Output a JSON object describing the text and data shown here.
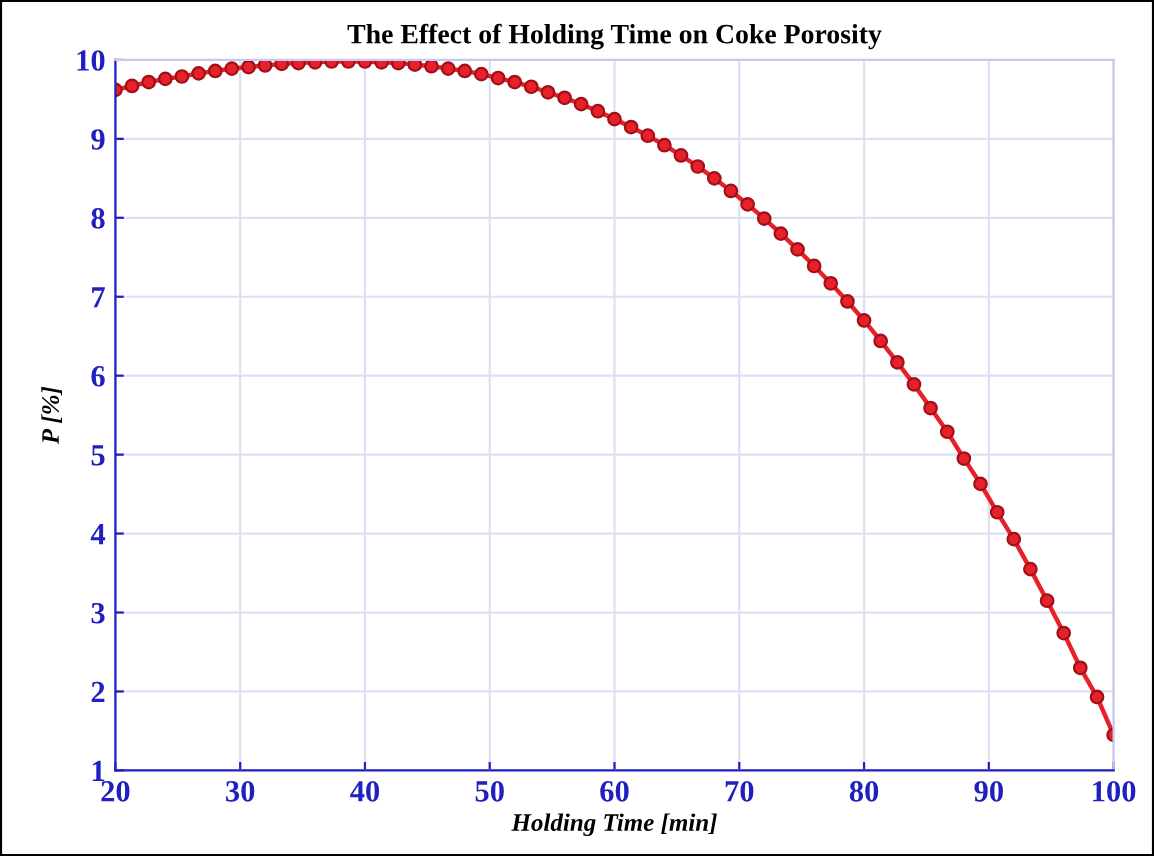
{
  "chart_data": {
    "type": "line",
    "title": "The Effect of Holding Time on Coke Porosity",
    "xlabel": "Holding Time [min]",
    "ylabel": "P [%]",
    "x": [
      20,
      21.33,
      22.67,
      24,
      25.33,
      26.67,
      28,
      29.33,
      30.67,
      32,
      33.33,
      34.67,
      36,
      37.33,
      38.67,
      40,
      41.33,
      42.67,
      44,
      45.33,
      46.67,
      48,
      49.33,
      50.67,
      52,
      53.33,
      54.67,
      56,
      57.33,
      58.67,
      60,
      61.33,
      62.67,
      64,
      65.33,
      66.67,
      68,
      69.33,
      70.67,
      72,
      73.33,
      74.67,
      76,
      77.33,
      78.67,
      80,
      81.33,
      82.67,
      84,
      85.33,
      86.67,
      88,
      89.33,
      90.67,
      92,
      93.33,
      94.67,
      96,
      97.33,
      98.67,
      100
    ],
    "series": [
      {
        "color": "#e8202a",
        "values": [
          9.62,
          9.67,
          9.72,
          9.76,
          9.79,
          9.83,
          9.86,
          9.89,
          9.91,
          9.93,
          9.95,
          9.96,
          9.97,
          9.98,
          9.98,
          9.98,
          9.97,
          9.96,
          9.94,
          9.92,
          9.89,
          9.86,
          9.82,
          9.77,
          9.72,
          9.66,
          9.59,
          9.52,
          9.44,
          9.35,
          9.25,
          9.15,
          9.04,
          8.92,
          8.79,
          8.65,
          8.5,
          8.34,
          8.17,
          7.99,
          7.8,
          7.6,
          7.39,
          7.17,
          6.94,
          6.7,
          6.44,
          6.17,
          5.89,
          5.59,
          5.29,
          4.95,
          4.63,
          4.27,
          3.93,
          3.55,
          3.15,
          2.74,
          2.3,
          1.93,
          1.45
        ]
      }
    ],
    "xlim": [
      20,
      100
    ],
    "xticks": [
      20,
      30,
      40,
      50,
      60,
      70,
      80,
      90,
      100
    ],
    "ylim": [
      1,
      10
    ],
    "yticks": [
      1,
      2,
      3,
      4,
      5,
      6,
      7,
      8,
      9,
      10
    ],
    "grid": true,
    "marker": "circle",
    "line_style": "solid"
  }
}
